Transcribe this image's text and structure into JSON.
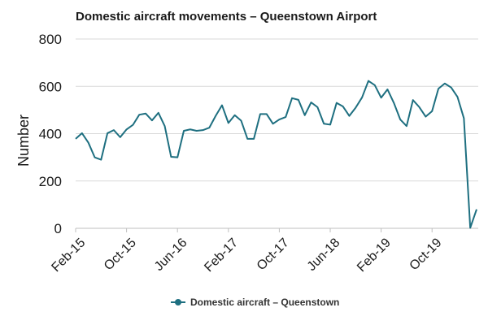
{
  "chart_data": {
    "type": "line",
    "title": "Domestic aircraft movements – Queenstown Airport",
    "xlabel": "",
    "ylabel": "Number",
    "ylim": [
      0,
      800
    ],
    "yticks": [
      0,
      200,
      400,
      600,
      800
    ],
    "grid": true,
    "legend": "bottom",
    "x_tick_labels": [
      "Feb-15",
      "Oct-15",
      "Jun-16",
      "Feb-17",
      "Oct-17",
      "Jun-18",
      "Feb-19",
      "Oct-19"
    ],
    "x": [
      "Feb-15",
      "Mar-15",
      "Apr-15",
      "May-15",
      "Jun-15",
      "Jul-15",
      "Aug-15",
      "Sep-15",
      "Oct-15",
      "Nov-15",
      "Dec-15",
      "Jan-16",
      "Feb-16",
      "Mar-16",
      "Apr-16",
      "May-16",
      "Jun-16",
      "Jul-16",
      "Aug-16",
      "Sep-16",
      "Oct-16",
      "Nov-16",
      "Dec-16",
      "Jan-17",
      "Feb-17",
      "Mar-17",
      "Apr-17",
      "May-17",
      "Jun-17",
      "Jul-17",
      "Aug-17",
      "Sep-17",
      "Oct-17",
      "Nov-17",
      "Dec-17",
      "Jan-18",
      "Feb-18",
      "Mar-18",
      "Apr-18",
      "May-18",
      "Jun-18",
      "Jul-18",
      "Aug-18",
      "Sep-18",
      "Oct-18",
      "Nov-18",
      "Dec-18",
      "Jan-19",
      "Feb-19",
      "Mar-19",
      "Apr-19",
      "May-19",
      "Jun-19",
      "Jul-19",
      "Aug-19",
      "Sep-19",
      "Oct-19",
      "Nov-19",
      "Dec-19",
      "Jan-20",
      "Feb-20",
      "Mar-20",
      "Apr-20",
      "May-20"
    ],
    "series": [
      {
        "name": "Domestic aircraft – Queenstown",
        "color": "#1e6f80",
        "values": [
          378,
          402,
          362,
          300,
          290,
          402,
          415,
          385,
          418,
          437,
          480,
          485,
          456,
          488,
          432,
          302,
          300,
          412,
          418,
          412,
          415,
          425,
          475,
          520,
          445,
          478,
          455,
          378,
          378,
          483,
          483,
          442,
          460,
          470,
          550,
          543,
          478,
          532,
          512,
          442,
          438,
          530,
          515,
          475,
          510,
          553,
          623,
          605,
          552,
          587,
          530,
          460,
          432,
          542,
          512,
          472,
          495,
          590,
          612,
          595,
          555,
          465,
          2,
          80
        ]
      }
    ]
  }
}
